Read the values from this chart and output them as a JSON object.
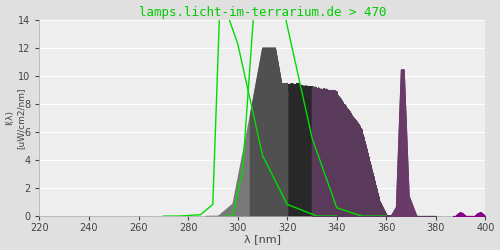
{
  "title": "lamps.licht-im-terrarium.de > 470",
  "xlabel": "λ [nm]",
  "ylabel": "I(λ)  [uW/cm2/nm]",
  "xlim": [
    220,
    400
  ],
  "ylim": [
    0,
    14
  ],
  "xticks": [
    220,
    240,
    260,
    280,
    300,
    320,
    340,
    360,
    380,
    400
  ],
  "yticks": [
    0,
    2,
    4,
    6,
    8,
    10,
    12,
    14
  ],
  "bg_color": "#e0e0e0",
  "plot_bg_color": "#eeeeee",
  "grid_color": "#ffffff",
  "spectrum_gray": "#606060",
  "spectrum_dark": "#282828",
  "spectrum_purple": "#5a3a5a",
  "spectrum_violet": "#7a007a",
  "green_color": "#00dd00",
  "title_color": "#00cc00",
  "title_fontsize": 9,
  "tick_labelsize": 7,
  "label_fontsize": 8
}
